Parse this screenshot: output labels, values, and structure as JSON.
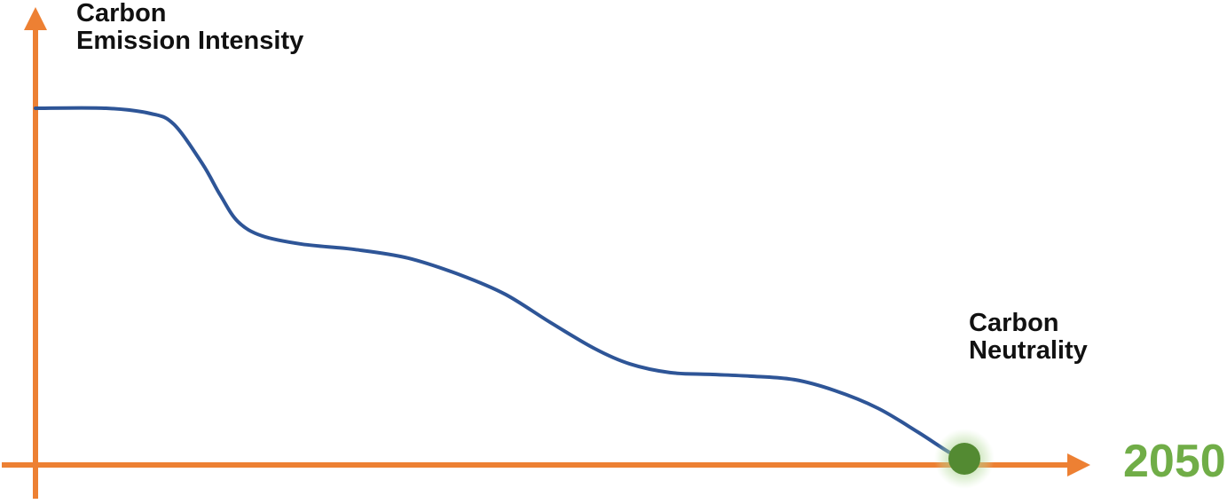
{
  "labels": {
    "y_axis_title_line1": "Carbon",
    "y_axis_title_line2": "Emission Intensity",
    "annotation_line1": "Carbon",
    "annotation_line2": "Neutrality",
    "x_axis_end_label": "2050"
  },
  "colors": {
    "axis": "#ED8033",
    "curve": "#2E5597",
    "dot": "#538A32",
    "dot_glow": "#A9D18E",
    "x_end_label": "#70AD47",
    "text": "#111111"
  },
  "chart_data": {
    "type": "line",
    "title": "",
    "xlabel": "",
    "ylabel": "Carbon Emission Intensity",
    "x_end_tick_label": "2050",
    "axes_numeric": false,
    "grid": false,
    "legend": false,
    "description": "Schematic concept chart: carbon emission intensity declines in stepped waves over time, reaching zero (carbon neutrality, marked by a glowing green dot on the time axis) by 2050. Axis units are qualitative; values below are relative (x: 0 = today, 1 = year 2050; y: 1 = current intensity, 0 = zero emissions).",
    "annotations": [
      {
        "text": "Carbon Neutrality",
        "target": "curve-endpoint"
      }
    ],
    "series": [
      {
        "name": "Carbon Emission Intensity",
        "points": [
          [
            0.0,
            1.0
          ],
          [
            0.076,
            1.0
          ],
          [
            0.124,
            0.985
          ],
          [
            0.149,
            0.955
          ],
          [
            0.18,
            0.843
          ],
          [
            0.199,
            0.756
          ],
          [
            0.218,
            0.682
          ],
          [
            0.244,
            0.642
          ],
          [
            0.287,
            0.619
          ],
          [
            0.344,
            0.604
          ],
          [
            0.401,
            0.58
          ],
          [
            0.458,
            0.532
          ],
          [
            0.506,
            0.478
          ],
          [
            0.554,
            0.4
          ],
          [
            0.602,
            0.326
          ],
          [
            0.64,
            0.283
          ],
          [
            0.683,
            0.259
          ],
          [
            0.726,
            0.254
          ],
          [
            0.769,
            0.249
          ],
          [
            0.817,
            0.239
          ],
          [
            0.86,
            0.209
          ],
          [
            0.907,
            0.159
          ],
          [
            0.95,
            0.092
          ],
          [
            0.984,
            0.035
          ],
          [
            1.0,
            0.017
          ]
        ]
      }
    ],
    "endpoint_marker": {
      "x": 1.0,
      "y": 0.017,
      "style": "solid green dot with soft green glow"
    },
    "xlim": [
      0,
      1.13
    ],
    "ylim": [
      0,
      1.0
    ]
  }
}
